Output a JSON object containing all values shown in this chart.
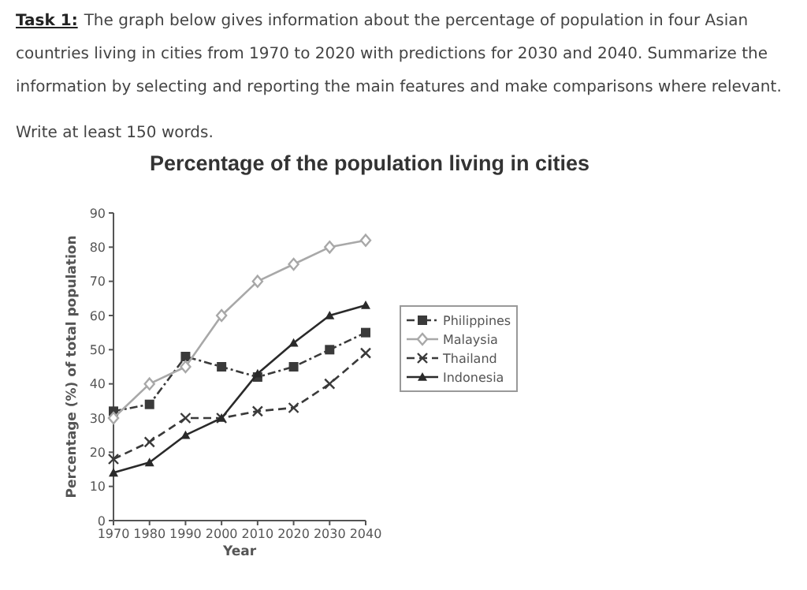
{
  "chart_data": {
    "type": "line",
    "title": "Percentage of the population living in cities",
    "annotations": [
      "Task 1:",
      "The graph below gives information about the percentage of population in four Asian countries living in cities from 1970 to 2020 with predictions for 2030 and 2040. Summarize the information by selecting and reporting the main features and make comparisons where relevant.",
      "Write at least 150 words."
    ],
    "xlabel": "Year",
    "ylabel": "Percentage (%) of total population",
    "x": [
      1970,
      1980,
      1990,
      2000,
      2010,
      2020,
      2030,
      2040
    ],
    "xlim": [
      1970,
      2040
    ],
    "xticks": [
      1970,
      1980,
      1990,
      2000,
      2010,
      2020,
      2030,
      2040
    ],
    "ylim": [
      0,
      90
    ],
    "yticks": [
      0,
      10,
      20,
      30,
      40,
      50,
      60,
      70,
      80,
      90
    ],
    "grid": false,
    "legend": "right",
    "series": [
      {
        "name": "Philippines",
        "color": "#3a3a3a",
        "marker": "square",
        "line_style": "dashdot",
        "values": [
          32,
          34,
          48,
          45,
          42,
          45,
          50,
          55
        ]
      },
      {
        "name": "Malaysia",
        "color": "#a8a8a8",
        "marker": "diamond",
        "line_style": "solid",
        "values": [
          30,
          40,
          45,
          60,
          70,
          75,
          80,
          82
        ]
      },
      {
        "name": "Thailand",
        "color": "#3a3a3a",
        "marker": "cross",
        "line_style": "dashed",
        "values": [
          18,
          23,
          30,
          30,
          32,
          33,
          40,
          49
        ]
      },
      {
        "name": "Indonesia",
        "color": "#2a2a2a",
        "marker": "triangle",
        "line_style": "solid",
        "values": [
          14,
          17,
          25,
          30,
          43,
          52,
          60,
          63
        ]
      }
    ]
  }
}
